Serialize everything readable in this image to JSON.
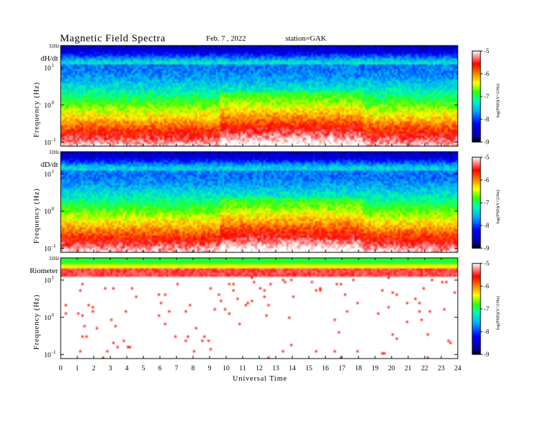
{
  "header": {
    "title": "Magnetic Field Spectra",
    "date": "Feb. 7  , 2022",
    "station": "station=GAK"
  },
  "chart_data": [
    {
      "type": "heatmap",
      "panel_label": "dH/dt",
      "ylabel": "Frequency  (Hz)",
      "top_label": "32Hz",
      "y_ticks": [
        {
          "base": "10",
          "exp": "1"
        },
        {
          "base": "10",
          "exp": "0"
        },
        {
          "base": "10",
          "exp": "-1"
        }
      ],
      "x_range": [
        0,
        24
      ],
      "colorbar_ticks": [
        "-5",
        "-6",
        "-7",
        "-8",
        "-9"
      ],
      "colorbar_label": "log(PSD)(V^2/Hz)",
      "clim": [
        -9,
        -5
      ]
    },
    {
      "type": "heatmap",
      "panel_label": "dD/dt",
      "ylabel": "Frequency  (Hz)",
      "top_label": "32Hz",
      "y_ticks": [
        {
          "base": "10",
          "exp": "1"
        },
        {
          "base": "10",
          "exp": "0"
        },
        {
          "base": "10",
          "exp": "-1"
        }
      ],
      "x_range": [
        0,
        24
      ],
      "colorbar_ticks": [
        "-5",
        "-6",
        "-7",
        "-8",
        "-9"
      ],
      "colorbar_label": "log(PSD)(V^2/Hz)",
      "clim": [
        -9,
        -5
      ]
    },
    {
      "type": "heatmap",
      "panel_label": "Riometer",
      "ylabel": "Frequency  (Hz)",
      "top_label": "32Hz",
      "y_ticks": [
        {
          "base": "10",
          "exp": "1"
        },
        {
          "base": "10",
          "exp": "0"
        },
        {
          "base": "10",
          "exp": "-1"
        }
      ],
      "x_range": [
        0,
        24
      ],
      "colorbar_ticks": [
        "-5",
        "-6",
        "-7",
        "-8",
        "-9"
      ],
      "colorbar_label": "log(PSD)(V^2/Hz)",
      "clim": [
        -9,
        -5
      ]
    }
  ],
  "x_axis": {
    "label": "Universal Time",
    "ticks": [
      "0",
      "1",
      "2",
      "3",
      "4",
      "5",
      "6",
      "7",
      "8",
      "9",
      "10",
      "11",
      "12",
      "13",
      "14",
      "15",
      "16",
      "17",
      "18",
      "19",
      "20",
      "21",
      "22",
      "23",
      "24"
    ]
  }
}
